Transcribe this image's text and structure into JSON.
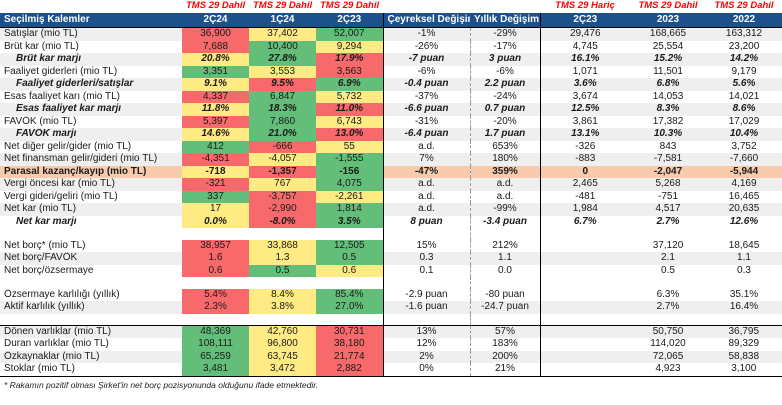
{
  "colors": {
    "red": "#f8696b",
    "yellow": "#ffeb84",
    "green": "#63be7a",
    "peach": "#f8cbad",
    "header_blue": "#1d518b",
    "super_label_red": "#ff0000",
    "stripe_gray": "#efefef"
  },
  "table": {
    "title": "Seçilmiş Kalemler",
    "super": [
      "",
      "TMS 29 Dahil",
      "TMS 29 Dahil",
      "TMS 29 Dahil",
      "",
      "",
      "TMS 29 Hariç",
      "TMS 29 Dahil",
      "TMS 29 Dahil"
    ],
    "columns": [
      "2Ç24",
      "1Ç24",
      "2Ç23",
      "Çeyreksel Değişim",
      "Yıllık Değişim",
      "2Ç23",
      "2023",
      "2022"
    ],
    "rows": [
      {
        "label": "Satışlar (mio TL)",
        "style": "normal",
        "vals": [
          [
            "36,900",
            "red"
          ],
          [
            "37,402",
            "yellow"
          ],
          [
            "52,007",
            "green"
          ]
        ],
        "chg": [
          "-1%",
          "-29%"
        ],
        "refs": [
          "29,476",
          "168,665",
          "163,312"
        ]
      },
      {
        "label": "Brüt kar (mio TL)",
        "style": "normal",
        "vals": [
          [
            "7,688",
            "red"
          ],
          [
            "10,400",
            "green"
          ],
          [
            "9,294",
            "yellow"
          ]
        ],
        "chg": [
          "-26%",
          "-17%"
        ],
        "refs": [
          "4,745",
          "25,554",
          "23,200"
        ]
      },
      {
        "label": "Brüt kar marjı",
        "style": "margin",
        "vals": [
          [
            "20.8%",
            "yellow"
          ],
          [
            "27.8%",
            "green"
          ],
          [
            "17.9%",
            "red"
          ]
        ],
        "chg": [
          "-7 puan",
          "3 puan"
        ],
        "refs": [
          "16.1%",
          "15.2%",
          "14.2%"
        ]
      },
      {
        "label": "Faaliyet giderleri (mio TL)",
        "style": "normal",
        "vals": [
          [
            "3,351",
            "green"
          ],
          [
            "3,553",
            "yellow"
          ],
          [
            "3,563",
            "red"
          ]
        ],
        "chg": [
          "-6%",
          "-6%"
        ],
        "refs": [
          "1,071",
          "11,501",
          "9,179"
        ]
      },
      {
        "label": "Faaliyet giderleri/satışlar",
        "style": "margin",
        "vals": [
          [
            "9.1%",
            "yellow"
          ],
          [
            "9.5%",
            "red"
          ],
          [
            "6.9%",
            "green"
          ]
        ],
        "chg": [
          "-0.4 puan",
          "2.2 puan"
        ],
        "refs": [
          "3.6%",
          "6.8%",
          "5.6%"
        ]
      },
      {
        "label": "Esas faaliyet karı (mio TL)",
        "style": "normal",
        "vals": [
          [
            "4,337",
            "red"
          ],
          [
            "6,847",
            "green"
          ],
          [
            "5,732",
            "yellow"
          ]
        ],
        "chg": [
          "-37%",
          "-24%"
        ],
        "refs": [
          "3,674",
          "14,053",
          "14,021"
        ]
      },
      {
        "label": "Esas faaliyet kar marjı",
        "style": "margin",
        "vals": [
          [
            "11.8%",
            "yellow"
          ],
          [
            "18.3%",
            "green"
          ],
          [
            "11.0%",
            "red"
          ]
        ],
        "chg": [
          "-6.6 puan",
          "0.7 puan"
        ],
        "refs": [
          "12.5%",
          "8.3%",
          "8.6%"
        ]
      },
      {
        "label": "FAVÖK (mio TL)",
        "style": "normal",
        "vals": [
          [
            "5,397",
            "red"
          ],
          [
            "7,860",
            "green"
          ],
          [
            "6,743",
            "yellow"
          ]
        ],
        "chg": [
          "-31%",
          "-20%"
        ],
        "refs": [
          "3,861",
          "17,382",
          "17,029"
        ]
      },
      {
        "label": "FAVÖK marjı",
        "style": "margin",
        "vals": [
          [
            "14.6%",
            "yellow"
          ],
          [
            "21.0%",
            "green"
          ],
          [
            "13.0%",
            "red"
          ]
        ],
        "chg": [
          "-6.4 puan",
          "1.7 puan"
        ],
        "refs": [
          "13.1%",
          "10.3%",
          "10.4%"
        ]
      },
      {
        "label": "Net diğer gelir/gider (mio TL)",
        "style": "normal",
        "vals": [
          [
            "412",
            "green"
          ],
          [
            "-666",
            "red"
          ],
          [
            "55",
            "yellow"
          ]
        ],
        "chg": [
          "a.d.",
          "653%"
        ],
        "refs": [
          "-326",
          "843",
          "3,752"
        ]
      },
      {
        "label": "Net finansman gelir/gideri (mio TL)",
        "style": "normal",
        "vals": [
          [
            "-4,351",
            "red"
          ],
          [
            "-4,057",
            "yellow"
          ],
          [
            "-1,555",
            "green"
          ]
        ],
        "chg": [
          "7%",
          "180%"
        ],
        "refs": [
          "-883",
          "-7,581",
          "-7,660"
        ]
      },
      {
        "label": "Parasal kazanç/kayıp (mio TL)",
        "style": "highlight",
        "vals": [
          [
            "-718",
            "yellow"
          ],
          [
            "-1,357",
            "red"
          ],
          [
            "-156",
            "green"
          ]
        ],
        "chg": [
          "-47%",
          "359%"
        ],
        "refs": [
          "0",
          "-2,047",
          "-5,944"
        ]
      },
      {
        "label": "Vergi öncesi kar (mio TL)",
        "style": "normal",
        "vals": [
          [
            "-321",
            "red"
          ],
          [
            "767",
            "yellow"
          ],
          [
            "4,075",
            "green"
          ]
        ],
        "chg": [
          "a.d.",
          "a.d."
        ],
        "refs": [
          "2,465",
          "5,268",
          "4,169"
        ]
      },
      {
        "label": "Vergi gideri/geliri (mio TL)",
        "style": "normal",
        "vals": [
          [
            "337",
            "green"
          ],
          [
            "-3,757",
            "red"
          ],
          [
            "-2,261",
            "yellow"
          ]
        ],
        "chg": [
          "a.d.",
          "a.d."
        ],
        "refs": [
          "-481",
          "-751",
          "16,465"
        ]
      },
      {
        "label": "Net kar (mio TL)",
        "style": "normal",
        "vals": [
          [
            "17",
            "yellow"
          ],
          [
            "-2,990",
            "red"
          ],
          [
            "1,814",
            "green"
          ]
        ],
        "chg": [
          "a.d.",
          "-99%"
        ],
        "refs": [
          "1,984",
          "4,517",
          "20,635"
        ]
      },
      {
        "label": "Net kar marjı",
        "style": "margin",
        "vals": [
          [
            "0.0%",
            "yellow"
          ],
          [
            "-8.0%",
            "red"
          ],
          [
            "3.5%",
            "green"
          ]
        ],
        "chg": [
          "8 puan",
          "-3.4 puan"
        ],
        "refs": [
          "6.7%",
          "2.7%",
          "12.6%"
        ]
      },
      {
        "style": "spacer"
      },
      {
        "label": "Net borç* (mio TL)",
        "style": "normal",
        "vals": [
          [
            "38,957",
            "red"
          ],
          [
            "33,868",
            "yellow"
          ],
          [
            "12,505",
            "green"
          ]
        ],
        "chg": [
          "15%",
          "212%"
        ],
        "refs": [
          "",
          "37,120",
          "18,645"
        ]
      },
      {
        "label": "Net borç/FAVÖK",
        "style": "normal",
        "vals": [
          [
            "1.6",
            "red"
          ],
          [
            "1.3",
            "yellow"
          ],
          [
            "0.5",
            "green"
          ]
        ],
        "chg": [
          "0.3",
          "1.1"
        ],
        "refs": [
          "",
          "2.1",
          "1.1"
        ]
      },
      {
        "label": "Net borç/özsermaye",
        "style": "normal",
        "vals": [
          [
            "0.6",
            "red"
          ],
          [
            "0.5",
            "green"
          ],
          [
            "0.6",
            "yellow"
          ]
        ],
        "chg": [
          "0.1",
          "0.0"
        ],
        "refs": [
          "",
          "0.5",
          "0.3"
        ]
      },
      {
        "style": "spacer"
      },
      {
        "label": "Özsermaye karlılığı (yıllık)",
        "style": "normal",
        "vals": [
          [
            "5.4%",
            "red"
          ],
          [
            "8.4%",
            "yellow"
          ],
          [
            "85.4%",
            "green"
          ]
        ],
        "chg": [
          "-2.9 puan",
          "-80 puan"
        ],
        "refs": [
          "",
          "6.3%",
          "35.1%"
        ]
      },
      {
        "label": "Aktif karlılık (yıllık)",
        "style": "normal",
        "vals": [
          [
            "2.3%",
            "red"
          ],
          [
            "3.8%",
            "yellow"
          ],
          [
            "27.0%",
            "green"
          ]
        ],
        "chg": [
          "-1.6 puan",
          "-24.7 puan"
        ],
        "refs": [
          "",
          "2.7%",
          "16.4%"
        ]
      },
      {
        "style": "spacer"
      },
      {
        "label": "Dönen varlıklar (mio TL)",
        "style": "normal",
        "section_top": true,
        "box_right": true,
        "vals": [
          [
            "48,369",
            "green"
          ],
          [
            "42,760",
            "yellow"
          ],
          [
            "30,731",
            "red"
          ]
        ],
        "chg": [
          "13%",
          "57%"
        ],
        "refs": [
          "",
          "50,750",
          "36,795"
        ]
      },
      {
        "label": "Duran varlıklar (mio TL)",
        "style": "normal",
        "box_right": true,
        "vals": [
          [
            "108,111",
            "green"
          ],
          [
            "96,800",
            "yellow"
          ],
          [
            "38,180",
            "red"
          ]
        ],
        "chg": [
          "12%",
          "183%"
        ],
        "refs": [
          "",
          "114,020",
          "89,329"
        ]
      },
      {
        "label": "Özkaynaklar (mio TL)",
        "style": "normal",
        "box_right": true,
        "vals": [
          [
            "65,259",
            "green"
          ],
          [
            "63,745",
            "yellow"
          ],
          [
            "21,774",
            "red"
          ]
        ],
        "chg": [
          "2%",
          "200%"
        ],
        "refs": [
          "",
          "72,065",
          "58,838"
        ]
      },
      {
        "label": "Stoklar (mio TL)",
        "style": "normal",
        "box_right": true,
        "section_bottom": true,
        "vals": [
          [
            "3,481",
            "green"
          ],
          [
            "3,472",
            "yellow"
          ],
          [
            "2,882",
            "red"
          ]
        ],
        "chg": [
          "0%",
          "21%"
        ],
        "refs": [
          "",
          "4,923",
          "3,100"
        ]
      }
    ]
  },
  "footnote": "* Rakamın pozitif olması Şirket'in net borç pozisyonunda olduğunu ifade etmektedir."
}
